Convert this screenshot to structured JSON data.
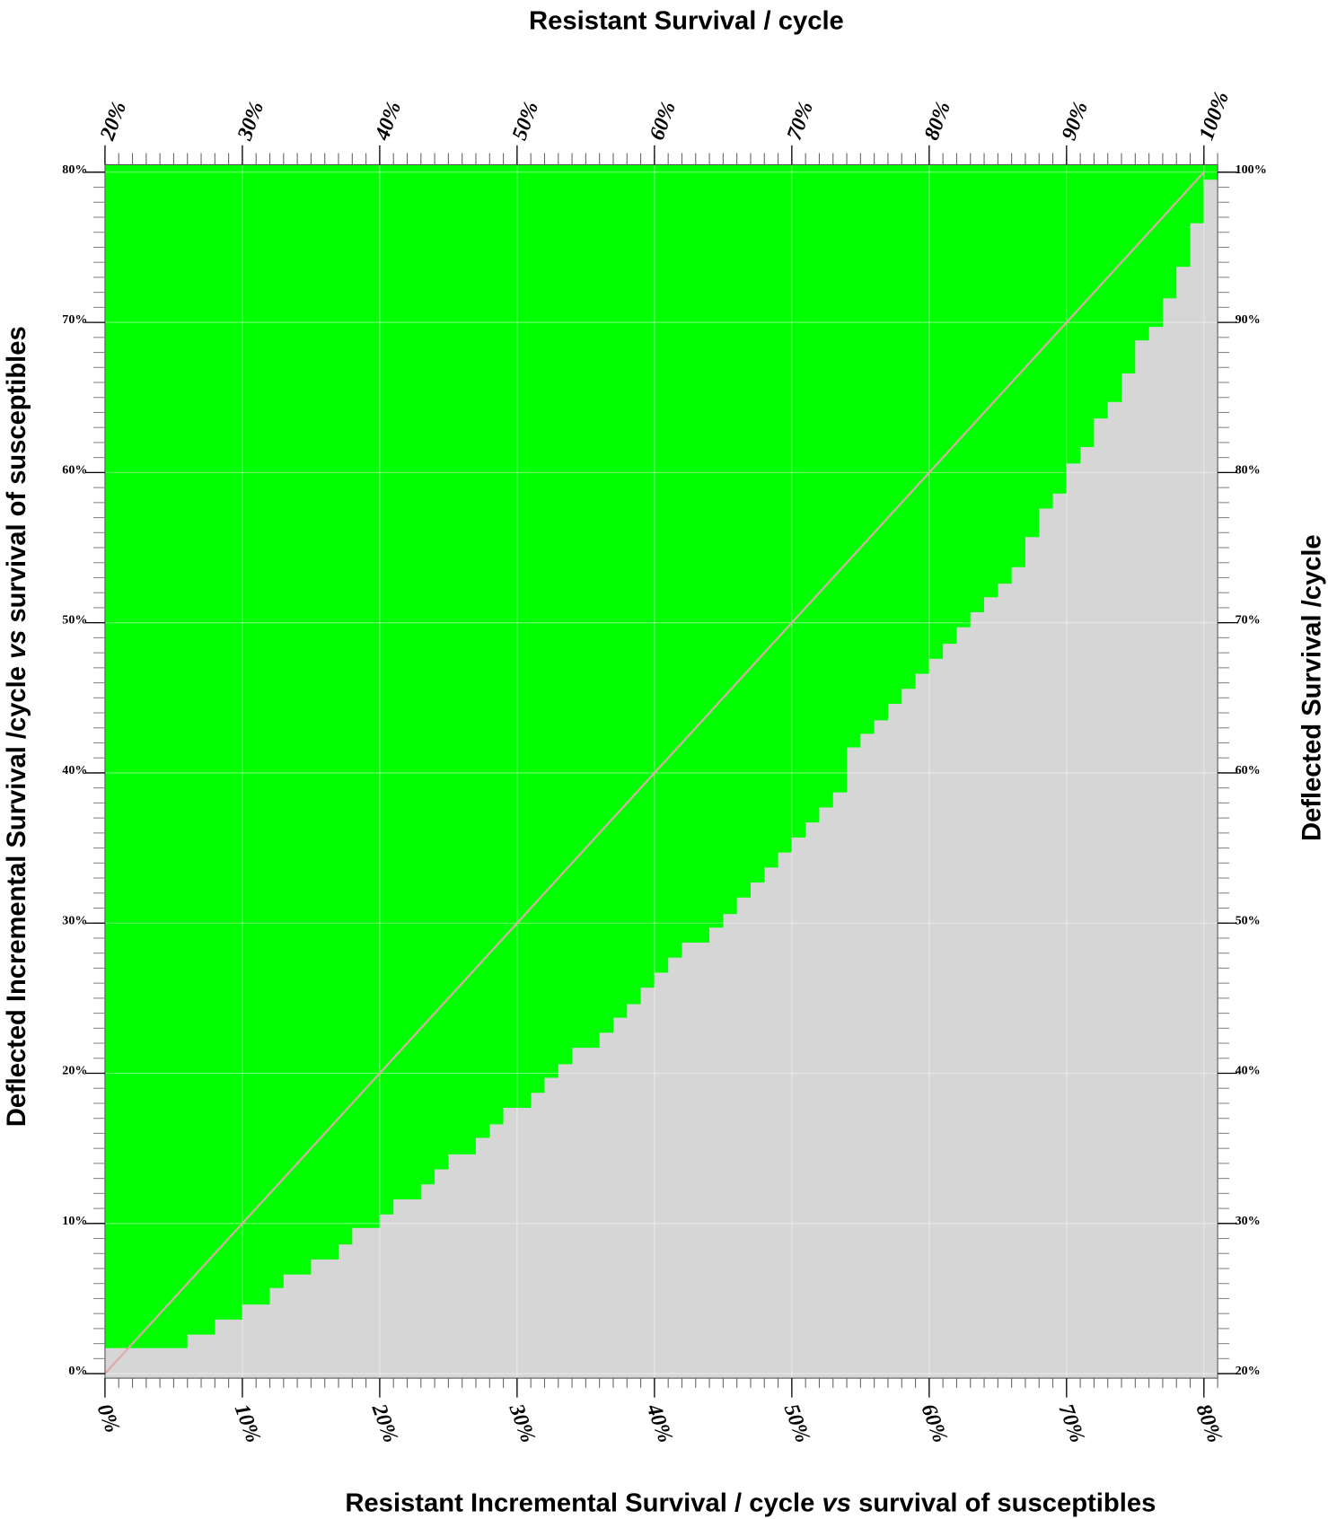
{
  "chart_data": {
    "type": "area",
    "title": "Resistant Survival / cycle",
    "xlabel": [
      "Resistant Incremental Survival / cycle",
      "vs",
      "survival of susceptibles"
    ],
    "ylabel": [
      "Deflected Incremental Survival /cycle",
      "vs",
      "survival of susceptibles"
    ],
    "y2label": "Deflected Survival /cycle",
    "x": [
      0,
      1,
      2,
      3,
      4,
      5,
      6,
      7,
      8,
      9,
      10,
      11,
      12,
      13,
      14,
      15,
      16,
      17,
      18,
      19,
      20,
      21,
      22,
      23,
      24,
      25,
      26,
      27,
      28,
      29,
      30,
      31,
      32,
      33,
      34,
      35,
      36,
      37,
      38,
      39,
      40,
      41,
      42,
      43,
      44,
      45,
      46,
      47,
      48,
      49,
      50,
      51,
      52,
      53,
      54,
      55,
      56,
      57,
      58,
      59,
      60,
      61,
      62,
      63,
      64,
      65,
      66,
      67,
      68,
      69,
      70,
      71,
      72,
      73,
      74,
      75,
      76,
      77,
      78,
      79,
      80
    ],
    "values": [
      1.7,
      1.7,
      1.7,
      1.7,
      1.7,
      1.7,
      2.6,
      2.6,
      3.6,
      3.6,
      4.6,
      4.6,
      5.7,
      6.6,
      6.6,
      7.6,
      7.6,
      8.6,
      9.7,
      9.7,
      10.6,
      11.6,
      11.6,
      12.6,
      13.6,
      14.6,
      14.6,
      15.7,
      16.6,
      17.7,
      17.7,
      18.7,
      19.7,
      20.6,
      21.7,
      21.7,
      22.7,
      23.7,
      24.6,
      25.7,
      26.7,
      27.7,
      28.7,
      28.7,
      29.7,
      30.6,
      31.7,
      32.7,
      33.7,
      34.7,
      35.7,
      36.7,
      37.7,
      38.7,
      41.7,
      42.6,
      43.5,
      44.6,
      45.6,
      46.6,
      47.6,
      48.6,
      49.7,
      50.7,
      51.7,
      52.6,
      53.7,
      55.7,
      57.6,
      58.6,
      60.6,
      61.7,
      63.6,
      64.7,
      66.6,
      68.8,
      69.7,
      71.6,
      73.7,
      76.6,
      79.5
    ],
    "color": "#00ff00",
    "below_color": "#d6d6d6",
    "diagonal": {
      "x": [
        0,
        80
      ],
      "values": [
        0,
        80
      ],
      "color": "#e0a8a8"
    },
    "xlim": [
      0,
      81
    ],
    "xticks": [
      {
        "value": 0,
        "label": "0%"
      },
      {
        "value": 10,
        "label": "10%"
      },
      {
        "value": 20,
        "label": "20%"
      },
      {
        "value": 30,
        "label": "30%"
      },
      {
        "value": 40,
        "label": "40%"
      },
      {
        "value": 50,
        "label": "50%"
      },
      {
        "value": 60,
        "label": "60%"
      },
      {
        "value": 70,
        "label": "70%"
      },
      {
        "value": 80,
        "label": "80%"
      }
    ],
    "x2lim": [
      20,
      101
    ],
    "x2ticks": [
      {
        "value": 20,
        "label": "20%"
      },
      {
        "value": 30,
        "label": "30%"
      },
      {
        "value": 40,
        "label": "40%"
      },
      {
        "value": 50,
        "label": "50%"
      },
      {
        "value": 60,
        "label": "60%"
      },
      {
        "value": 70,
        "label": "70%"
      },
      {
        "value": 80,
        "label": "80%"
      },
      {
        "value": 90,
        "label": "90%"
      },
      {
        "value": 100,
        "label": "100%"
      }
    ],
    "ylim": [
      -0.3,
      80.5
    ],
    "yticks": [
      {
        "value": 0,
        "label": "0%"
      },
      {
        "value": 10,
        "label": "10%"
      },
      {
        "value": 20,
        "label": "20%"
      },
      {
        "value": 30,
        "label": "30%"
      },
      {
        "value": 40,
        "label": "40%"
      },
      {
        "value": 50,
        "label": "50%"
      },
      {
        "value": 60,
        "label": "60%"
      },
      {
        "value": 70,
        "label": "70%"
      },
      {
        "value": 80,
        "label": "80%"
      }
    ],
    "y2lim": [
      19.7,
      100.5
    ],
    "y2ticks": [
      {
        "value": 20,
        "label": "20%"
      },
      {
        "value": 30,
        "label": "30%"
      },
      {
        "value": 40,
        "label": "40%"
      },
      {
        "value": 50,
        "label": "50%"
      },
      {
        "value": 60,
        "label": "60%"
      },
      {
        "value": 70,
        "label": "70%"
      },
      {
        "value": 80,
        "label": "80%"
      },
      {
        "value": 90,
        "label": "90%"
      },
      {
        "value": 100,
        "label": "100%"
      }
    ],
    "minor_step": 1,
    "grid": true
  }
}
